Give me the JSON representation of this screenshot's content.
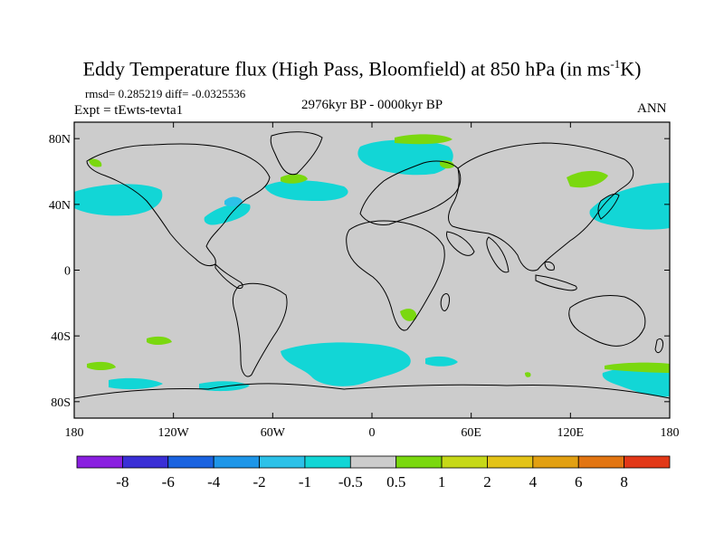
{
  "title_main": "Eddy Temperature flux (High Pass, Bloomfield) at 850 hPa (in ms",
  "title_sup": "-1",
  "title_end": "K)",
  "stats_text": "rmsd= 0.285219 diff= -0.0325536",
  "expt_text": "Expt = tEwts-tevta1",
  "period_text": "2976kyr BP - 0000kyr BP",
  "season_text": "ANN",
  "colors": {
    "ocean_land_neutral": "#cccccc",
    "coast": "#000000",
    "cyan": "#12d6d6",
    "light_blue": "#2cc1e8",
    "green": "#7ad80f"
  },
  "map": {
    "lon_range": [
      -180,
      180
    ],
    "lat_range": [
      -90,
      90
    ],
    "x_ticks": [
      {
        "value": -180,
        "label": "180"
      },
      {
        "value": -120,
        "label": "120W"
      },
      {
        "value": -60,
        "label": "60W"
      },
      {
        "value": 0,
        "label": "0"
      },
      {
        "value": 60,
        "label": "60E"
      },
      {
        "value": 120,
        "label": "120E"
      },
      {
        "value": 180,
        "label": "180"
      }
    ],
    "y_ticks": [
      {
        "value": 80,
        "label": "80N"
      },
      {
        "value": 40,
        "label": "40N"
      },
      {
        "value": 0,
        "label": "0"
      },
      {
        "value": -40,
        "label": "40S"
      },
      {
        "value": -80,
        "label": "80S"
      }
    ]
  },
  "colorbar": {
    "colors": [
      "#8a1fe0",
      "#3a2fd6",
      "#1a63e0",
      "#1e96e8",
      "#2cc1e8",
      "#12d6d6",
      "#cccccc",
      "#7ad80f",
      "#c6d818",
      "#e3c318",
      "#e2a012",
      "#e27512",
      "#e23818"
    ],
    "labels": [
      "-8",
      "-6",
      "-4",
      "-2",
      "-1",
      "-0.5",
      "0.5",
      "1",
      "2",
      "4",
      "6",
      "8"
    ]
  }
}
